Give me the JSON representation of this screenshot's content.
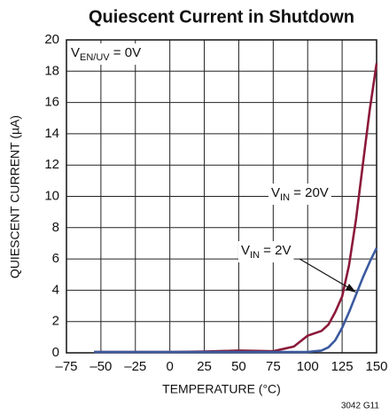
{
  "chart_data": {
    "type": "line",
    "title": "Quiescent Current in Shutdown",
    "xlabel": "TEMPERATURE (°C)",
    "ylabel": "QUIESCENT CURRENT (µA)",
    "footnote": "3042 G11",
    "x": [
      -55,
      -25,
      0,
      25,
      50,
      75,
      90,
      100,
      110,
      115,
      120,
      125,
      130,
      135,
      140,
      145,
      150
    ],
    "series": [
      {
        "name": "VIN = 20V",
        "color": "#8b1a3a",
        "values": [
          0.05,
          0.05,
          0.05,
          0.08,
          0.15,
          0.1,
          0.4,
          1.1,
          1.4,
          1.8,
          2.6,
          3.6,
          5.6,
          8.5,
          12,
          15.5,
          18.5
        ]
      },
      {
        "name": "VIN = 2V",
        "color": "#3b5a9e",
        "values": [
          0.05,
          0.05,
          0.05,
          0.05,
          0.05,
          0.05,
          0.05,
          0.05,
          0.15,
          0.35,
          0.8,
          1.6,
          2.6,
          3.7,
          4.8,
          5.8,
          6.7
        ]
      }
    ],
    "annotations": [
      {
        "main": "V",
        "sub": "EN/UV",
        "suffix": " = 0V"
      },
      {
        "main": "V",
        "sub": "IN",
        "suffix": " = 20V"
      },
      {
        "main": "V",
        "sub": "IN",
        "suffix": " = 2V"
      }
    ],
    "xlim": [
      -75,
      150
    ],
    "xticks": [
      {
        "value": -75,
        "label": "–75"
      },
      {
        "value": -50,
        "label": "–50"
      },
      {
        "value": -25,
        "label": "–25"
      },
      0,
      25,
      50,
      75,
      100,
      125,
      150
    ],
    "ylim": [
      0,
      20
    ],
    "yticks": [
      0,
      2,
      4,
      6,
      8,
      10,
      12,
      14,
      16,
      18,
      20
    ],
    "grid": true
  }
}
